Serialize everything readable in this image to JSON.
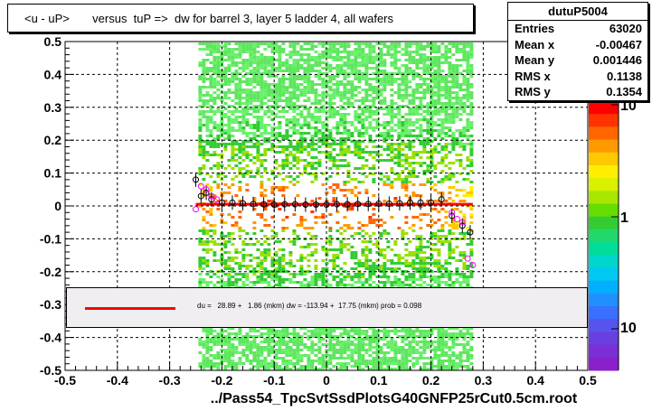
{
  "title": "<u - uP>       versus  tuP =>  dw for barrel 3, layer 5 ladder 4, all wafers",
  "stats": {
    "name": "dutuP5004",
    "rows": [
      {
        "label": "Entries",
        "value": "63020"
      },
      {
        "label": "Mean x",
        "value": "-0.00467"
      },
      {
        "label": "Mean y",
        "value": "0.001446"
      },
      {
        "label": "RMS x",
        "value": "0.1138"
      },
      {
        "label": "RMS y",
        "value": "0.1354"
      }
    ]
  },
  "legend": {
    "text": "du =   28.89 +   1.86 (mkm) dw = -113.94 +  17.75 (mkm) prob = 0.098",
    "line_color": "#ff0000"
  },
  "xlabel": "../Pass54_TpcSvtSsdPlotsG40GNFP25rCut0.5cm.root",
  "chart_data": {
    "type": "heatmap",
    "xlim": [
      -0.5,
      0.5
    ],
    "ylim": [
      -0.5,
      0.5
    ],
    "x_ticks": [
      "-0.5",
      "-0.4",
      "-0.3",
      "-0.2",
      "-0.1",
      "0",
      "0.1",
      "0.2",
      "0.3",
      "0.4",
      "0.5"
    ],
    "y_ticks": [
      "-0.5",
      "-0.4",
      "-0.3",
      "-0.2",
      "-0.1",
      "0",
      "0.1",
      "0.2",
      "0.3",
      "0.4",
      "0.5"
    ],
    "z_ticks": [
      "10",
      "1",
      "10"
    ],
    "grid": true,
    "fit_line": {
      "x": [
        -0.25,
        0.28
      ],
      "y": [
        0.005,
        0.005
      ],
      "color": "#ff0000"
    },
    "profile_black": {
      "x": [
        -0.25,
        -0.24,
        -0.23,
        -0.22,
        -0.2,
        -0.18,
        -0.16,
        -0.14,
        -0.12,
        -0.1,
        -0.08,
        -0.06,
        -0.04,
        -0.02,
        0.0,
        0.02,
        0.04,
        0.06,
        0.08,
        0.1,
        0.12,
        0.14,
        0.16,
        0.18,
        0.2,
        0.22,
        0.24,
        0.26,
        0.275
      ],
      "y": [
        0.08,
        0.03,
        0.04,
        0.02,
        0.01,
        0.01,
        0.008,
        0.006,
        0.005,
        0.004,
        0.005,
        0.005,
        0.004,
        0.004,
        0.004,
        0.005,
        0.005,
        0.006,
        0.006,
        0.007,
        0.007,
        0.008,
        0.01,
        0.01,
        0.01,
        0.02,
        -0.03,
        -0.06,
        -0.08
      ]
    },
    "profile_magenta": {
      "x": [
        -0.25,
        -0.24,
        -0.23,
        -0.22,
        -0.21,
        0.24,
        0.25,
        0.26,
        0.27,
        0.28
      ],
      "y": [
        -0.01,
        0.06,
        0.05,
        0.03,
        0.02,
        -0.02,
        -0.04,
        -0.05,
        -0.16,
        -0.18
      ]
    }
  }
}
